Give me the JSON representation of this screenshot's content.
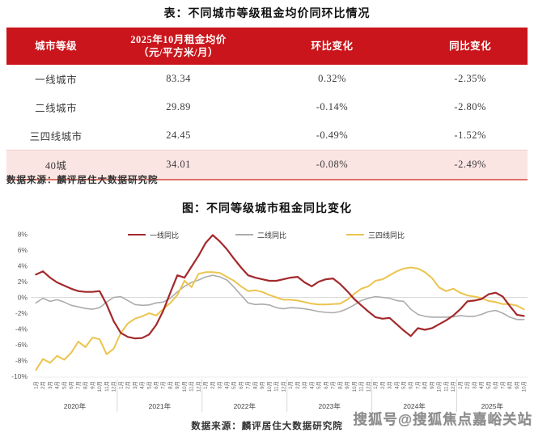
{
  "colors": {
    "table_header_red": "#C9151B",
    "highlight_row_pink": "#FBE5E3",
    "table_divider_red": "#DD7168",
    "tier1_line": "#A3292C",
    "tier2_line": "#ACACAC",
    "tier34_line": "#EBC44E",
    "gridline": "#DBDBDB"
  },
  "watermark": "搜狐号@搜狐焦点嘉峪关站",
  "chart_data": [
    {
      "type": "table",
      "title": "表：不同城市等级租金均价同环比情况",
      "columns": [
        "城市等级",
        "2025年10月租金均价（元/平方米/月）",
        "环比变化",
        "同比变化"
      ],
      "header": {
        "col1": "城市等级",
        "col2_line1": "2025年10月租金均价",
        "col2_line2": "（元/平方米/月）",
        "col3": "环比变化",
        "col4": "同比变化"
      },
      "rows": [
        [
          "一线城市",
          "83.34",
          "0.32%",
          "-2.35%"
        ],
        [
          "二线城市",
          "29.89",
          "-0.14%",
          "-2.80%"
        ],
        [
          "三四线城市",
          "24.45",
          "-0.49%",
          "-1.52%"
        ],
        [
          "40城",
          "34.01",
          "-0.08%",
          "-2.49%"
        ]
      ],
      "highlighted_row_index": 3,
      "source": "数据来源：麟评居住大数据研究院"
    },
    {
      "type": "line",
      "title": "图：不同等级城市租金同比变化",
      "x_start": "2020年1月",
      "x_end": "2025年10月",
      "years": [
        {
          "label": "2020年",
          "months": 12
        },
        {
          "label": "2021年",
          "months": 12
        },
        {
          "label": "2022年",
          "months": 12
        },
        {
          "label": "2023年",
          "months": 12
        },
        {
          "label": "2024年",
          "months": 12
        },
        {
          "label": "2025年",
          "months": 10
        }
      ],
      "month_suffix": "月",
      "ylim": [
        -10,
        8
      ],
      "yticks": [
        8,
        6,
        4,
        2,
        0,
        -2,
        -4,
        -6,
        -8,
        -10
      ],
      "y_unit": "%",
      "grid": "zero-line-only",
      "legend_position": "top",
      "series": [
        {
          "name": "一线同比",
          "color": "#A3292C",
          "values": [
            2.9,
            3.3,
            2.5,
            1.9,
            1.5,
            1.1,
            0.8,
            0.7,
            0.7,
            0.8,
            -0.9,
            -3.0,
            -4.5,
            -5.0,
            -5.2,
            -5.15,
            -4.7,
            -3.5,
            -1.7,
            0.6,
            2.8,
            2.5,
            3.9,
            5.3,
            6.9,
            7.9,
            7.1,
            6.1,
            4.9,
            3.8,
            2.8,
            2.5,
            2.3,
            2.1,
            2.1,
            2.3,
            2.5,
            2.6,
            1.9,
            1.4,
            2.0,
            2.3,
            2.4,
            1.7,
            0.8,
            -0.2,
            -1.0,
            -1.8,
            -2.5,
            -2.7,
            -2.6,
            -3.4,
            -4.2,
            -4.9,
            -3.9,
            -4.1,
            -3.9,
            -3.4,
            -2.9,
            -2.3,
            -1.5,
            -0.5,
            -0.4,
            -0.2,
            0.4,
            0.6,
            0.1,
            -1.1,
            -2.2,
            -2.35
          ]
        },
        {
          "name": "二线同比",
          "color": "#ACACAC",
          "values": [
            -0.7,
            -0.1,
            -0.5,
            -0.3,
            -0.6,
            -1.0,
            -1.2,
            -1.4,
            -1.5,
            -1.3,
            -0.6,
            0.0,
            0.1,
            -0.4,
            -0.9,
            -1.0,
            -0.95,
            -0.7,
            -0.6,
            -0.1,
            0.7,
            1.4,
            1.9,
            2.2,
            2.6,
            2.8,
            2.6,
            2.2,
            1.3,
            0.3,
            -0.7,
            -0.9,
            -0.85,
            -0.95,
            -1.3,
            -1.45,
            -1.3,
            -1.35,
            -1.45,
            -1.6,
            -1.8,
            -1.9,
            -1.95,
            -1.8,
            -1.45,
            -0.95,
            -0.4,
            -0.1,
            0.1,
            0.0,
            -0.1,
            -0.4,
            -0.5,
            -1.5,
            -2.15,
            -2.4,
            -2.5,
            -2.5,
            -2.5,
            -2.45,
            -2.3,
            -2.4,
            -2.4,
            -2.15,
            -1.8,
            -1.65,
            -2.0,
            -2.5,
            -2.8,
            -2.8
          ]
        },
        {
          "name": "三四线同比",
          "color": "#EBC44E",
          "values": [
            -9.2,
            -7.8,
            -8.3,
            -7.4,
            -7.9,
            -7.0,
            -5.6,
            -6.3,
            -5.1,
            -5.3,
            -7.2,
            -6.5,
            -4.5,
            -3.3,
            -2.7,
            -2.4,
            -2.0,
            -2.3,
            -1.5,
            -0.7,
            0.3,
            2.1,
            1.3,
            3.0,
            3.2,
            3.2,
            3.1,
            2.6,
            2.1,
            1.4,
            0.8,
            0.9,
            0.7,
            0.3,
            0.0,
            -0.3,
            -0.3,
            -0.4,
            -0.6,
            -0.8,
            -0.9,
            -0.9,
            -0.85,
            -0.8,
            -0.3,
            0.45,
            1.1,
            1.4,
            2.1,
            2.3,
            2.8,
            3.3,
            3.65,
            3.8,
            3.65,
            3.2,
            2.45,
            1.25,
            0.8,
            1.1,
            0.6,
            0.25,
            0.1,
            -0.1,
            -0.45,
            -0.6,
            -0.85,
            -0.85,
            -1.05,
            -1.52
          ]
        }
      ],
      "source": "数据来源：麟评居住大数据研究院"
    }
  ]
}
